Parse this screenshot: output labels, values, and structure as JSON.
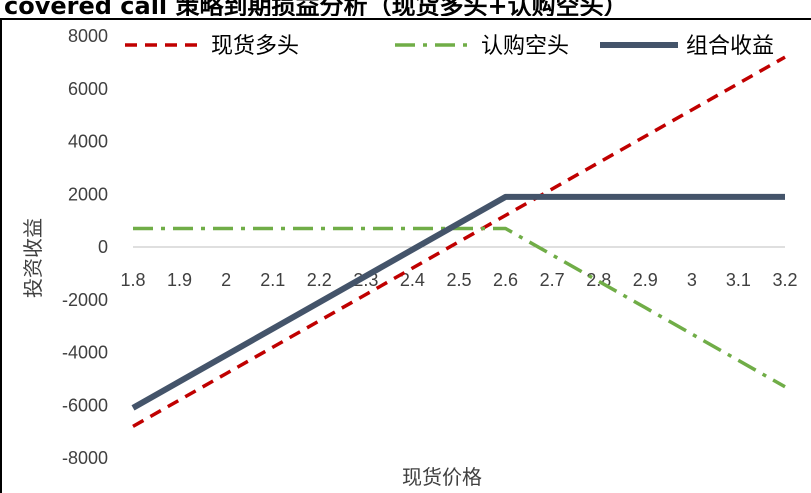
{
  "header": {
    "clipped_title": "covered call 策略到期损益分析（现货多头+认购空头）"
  },
  "chart_data": {
    "type": "line",
    "title": "",
    "xlabel": "现货价格",
    "ylabel": "投资收益",
    "x": [
      1.8,
      1.9,
      2.0,
      2.1,
      2.2,
      2.3,
      2.4,
      2.5,
      2.6,
      2.7,
      2.8,
      2.9,
      3.0,
      3.1,
      3.2
    ],
    "x_tick_labels": [
      "1.8",
      "1.9",
      "2",
      "2.1",
      "2.2",
      "2.3",
      "2.4",
      "2.5",
      "2.6",
      "2.7",
      "2.8",
      "2.9",
      "3",
      "3.1",
      "3.2"
    ],
    "y_tick_labels": [
      "8000",
      "6000",
      "4000",
      "2000",
      "0",
      "-2000",
      "-4000",
      "-6000",
      "-8000"
    ],
    "ylim": [
      -8000,
      8000
    ],
    "xlim": [
      1.8,
      3.2
    ],
    "grid": false,
    "legend_position": "top",
    "series": [
      {
        "name": "现货多头",
        "color": "#C00000",
        "dash": "dashed",
        "values": [
          -6800,
          -5800,
          -4800,
          -3800,
          -2800,
          -1800,
          -800,
          200,
          1200,
          2200,
          3200,
          4200,
          5200,
          6200,
          7200
        ]
      },
      {
        "name": "认购空头",
        "color": "#70AD47",
        "dash": "dash-dot",
        "values": [
          700,
          700,
          700,
          700,
          700,
          700,
          700,
          700,
          700,
          -300,
          -1300,
          -2300,
          -3300,
          -4300,
          -5300
        ]
      },
      {
        "name": "组合收益",
        "color": "#44546A",
        "dash": "solid",
        "values": [
          -6100,
          -5100,
          -4100,
          -3100,
          -2100,
          -1100,
          -100,
          900,
          1900,
          1900,
          1900,
          1900,
          1900,
          1900,
          1900
        ]
      }
    ]
  }
}
